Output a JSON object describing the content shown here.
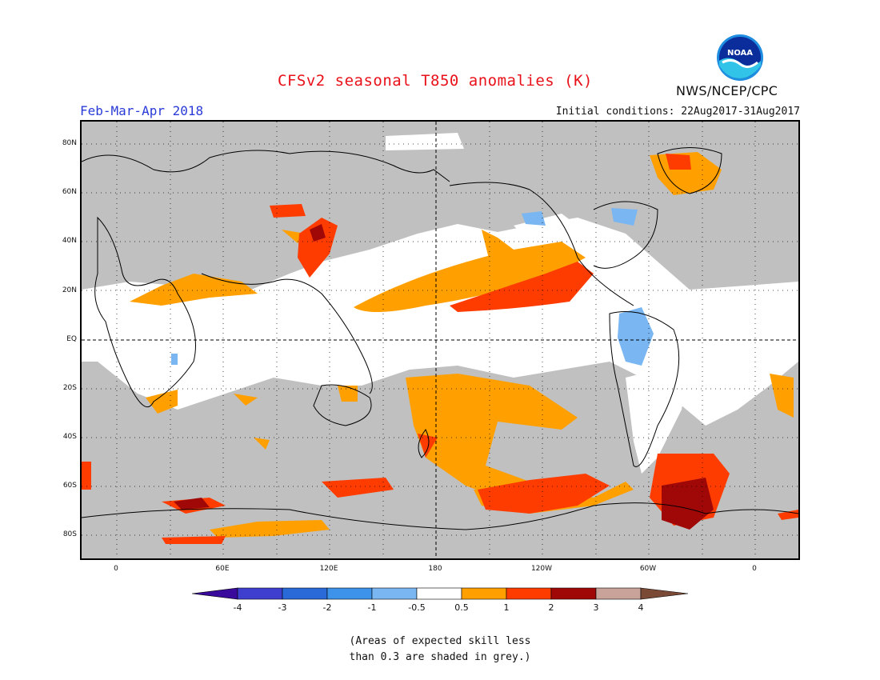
{
  "header": {
    "title": "CFSv2 seasonal T850 anomalies (K)",
    "season": "Feb-Mar-Apr 2018",
    "initial_conditions": "Initial conditions: 22Aug2017-31Aug2017",
    "agency": "NWS/NCEP/CPC",
    "logo_text": "NOAA"
  },
  "map": {
    "lat_labels": [
      "80N",
      "60N",
      "40N",
      "20N",
      "EQ",
      "20S",
      "40S",
      "60S",
      "80S"
    ],
    "lon_labels": [
      "0",
      "60E",
      "120E",
      "180",
      "120W",
      "60W",
      "0"
    ],
    "background_grey": "#c0c0c0"
  },
  "legend": {
    "labels": [
      "-4",
      "-3",
      "-2",
      "-1",
      "-0.5",
      "0.5",
      "1",
      "2",
      "3",
      "4"
    ],
    "colors": [
      "#3a0a9c",
      "#3f3fcf",
      "#2a6ad8",
      "#3d92ea",
      "#79b6f2",
      "#ffffff",
      "#ff9f00",
      "#ff3c00",
      "#a00808",
      "#c9a39a",
      "#7a4a36"
    ]
  },
  "footnote": {
    "line1": "(Areas of expected skill less",
    "line2": "than 0.3 are shaded in grey.)"
  }
}
